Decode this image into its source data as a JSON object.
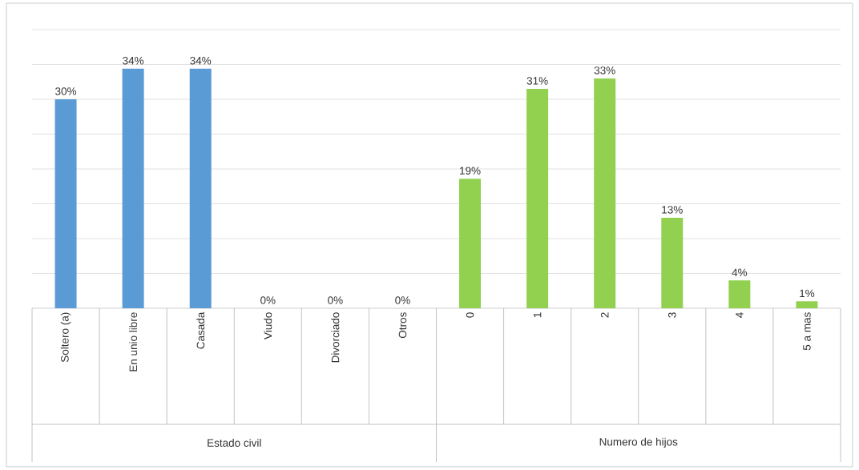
{
  "chart_data": {
    "type": "bar",
    "categories": [
      "Soltero (a)",
      "En unio libre",
      "Casada",
      "Viudo",
      "Divorciado",
      "Otros",
      "0",
      "1",
      "2",
      "3",
      "4",
      "5 a mas"
    ],
    "values": [
      30,
      34.4,
      34.4,
      0,
      0,
      0,
      18.6,
      31.5,
      33,
      13,
      4,
      1
    ],
    "value_labels": [
      "30%",
      "34%",
      "34%",
      "0%",
      "0%",
      "0%",
      "19%",
      "31%",
      "33%",
      "13%",
      "4%",
      "1%"
    ],
    "colors": [
      "#5b9bd5",
      "#5b9bd5",
      "#5b9bd5",
      "#5b9bd5",
      "#5b9bd5",
      "#5b9bd5",
      "#92d050",
      "#92d050",
      "#92d050",
      "#92d050",
      "#92d050",
      "#92d050"
    ],
    "ylim": [
      0,
      40
    ],
    "yticks": [
      {
        "value": 0,
        "label": null
      },
      {
        "value": 5,
        "label": null
      },
      {
        "value": 10,
        "label": null
      },
      {
        "value": 15,
        "label": null
      },
      {
        "value": 20,
        "label": null
      },
      {
        "value": 25,
        "label": null
      },
      {
        "value": 30,
        "label": null
      },
      {
        "value": 35,
        "label": null
      },
      {
        "value": 40,
        "label": null
      }
    ],
    "grid": "y",
    "annotations": [
      "Estado civil",
      "Numero de hijos"
    ]
  }
}
